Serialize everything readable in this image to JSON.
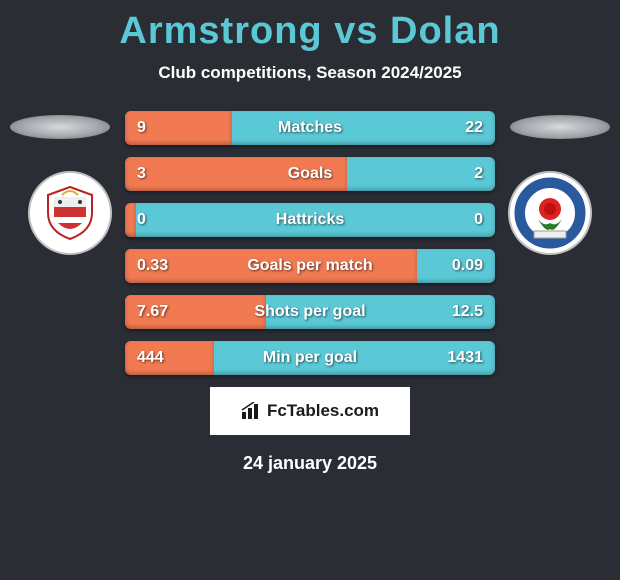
{
  "title": "Armstrong vs Dolan",
  "subtitle": "Club competitions, Season 2024/2025",
  "bars": [
    {
      "label": "Matches",
      "left": "9",
      "right": "22",
      "fill_pct": 29
    },
    {
      "label": "Goals",
      "left": "3",
      "right": "2",
      "fill_pct": 60
    },
    {
      "label": "Hattricks",
      "left": "0",
      "right": "0",
      "fill_pct": 3
    },
    {
      "label": "Goals per match",
      "left": "0.33",
      "right": "0.09",
      "fill_pct": 79
    },
    {
      "label": "Shots per goal",
      "left": "7.67",
      "right": "12.5",
      "fill_pct": 38
    },
    {
      "label": "Min per goal",
      "left": "444",
      "right": "1431",
      "fill_pct": 24
    }
  ],
  "fctables_label": "FcTables.com",
  "date": "24 january 2025",
  "colors": {
    "bg": "#2a2d34",
    "accent_blue": "#5bc8d6",
    "accent_orange": "#f27a53"
  },
  "left_badge": {
    "name": "bristol-city-badge"
  },
  "right_badge": {
    "name": "blackburn-rovers-badge"
  }
}
